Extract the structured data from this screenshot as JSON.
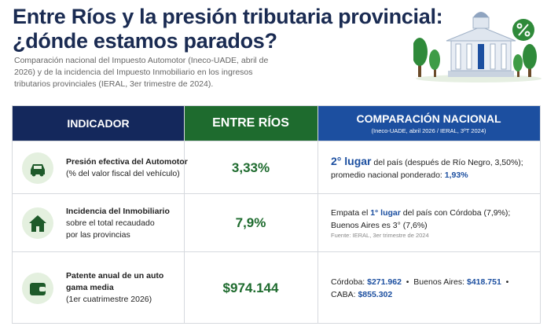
{
  "header": {
    "title_lines": [
      "Entre Ríos y la presión tributaria provincial:",
      "¿dónde estamos parados?"
    ],
    "subtitle_lines": [
      "Comparación nacional del Impuesto Automotor (Ineco-UADE, abril de",
      "2026) y de la incidencia del Impuesto Inmobiliario en los ingresos",
      "tributarios provinciales (IERAL, 3er trimestre de 2024)."
    ]
  },
  "table": {
    "columns": [
      "INDICADOR",
      "ENTRE RÍOS",
      "COMPARACIÓN NACIONAL"
    ],
    "column_note": "(Ineco-UADE, abril 2026 / IERAL, 3ºT 2024)",
    "rows": [
      {
        "icon": "car",
        "name_lines": [
          "Presión efectiva del Automotor"
        ],
        "detail_lines": [
          "(% del valor fiscal del vehículo)"
        ],
        "value": "3,33%",
        "comparison": [
          [
            {
              "text": "2° lugar",
              "em": true,
              "big": true
            },
            {
              "text": " del país (después de Río Negro, 3,50%);"
            }
          ],
          [
            {
              "text": "promedio nacional ponderado: "
            },
            {
              "text": "1,93%",
              "em": true
            }
          ]
        ]
      },
      {
        "icon": "house",
        "name_lines": [
          "Incidencia del Inmobiliario"
        ],
        "detail_lines": [
          "sobre el total recaudado",
          "por las provincias"
        ],
        "value": "7,9%",
        "comparison": [
          [
            {
              "text": "Empata el "
            },
            {
              "text": "1° lugar",
              "em": true
            },
            {
              "text": " del país con Córdoba (7,9%);"
            }
          ],
          [
            {
              "text": "Buenos Aires es 3° (7,6%)"
            }
          ]
        ],
        "note": "Fuente: IERAL, 3er trimestre de 2024"
      },
      {
        "icon": "wallet",
        "name_lines": [
          "Patente anual de un auto",
          "gama media"
        ],
        "detail_lines": [
          "(1er cuatrimestre 2026)"
        ],
        "value": "$974.144",
        "comparison": [
          [
            {
              "text": "Córdoba: "
            },
            {
              "text": "$271.962",
              "em": true
            },
            {
              "text": "  •  Buenos Aires: "
            },
            {
              "text": "$418.751",
              "em": true
            },
            {
              "text": "  •"
            }
          ],
          [
            {
              "text": "CABA: "
            },
            {
              "text": "$855.302",
              "em": true
            }
          ]
        ]
      }
    ]
  }
}
